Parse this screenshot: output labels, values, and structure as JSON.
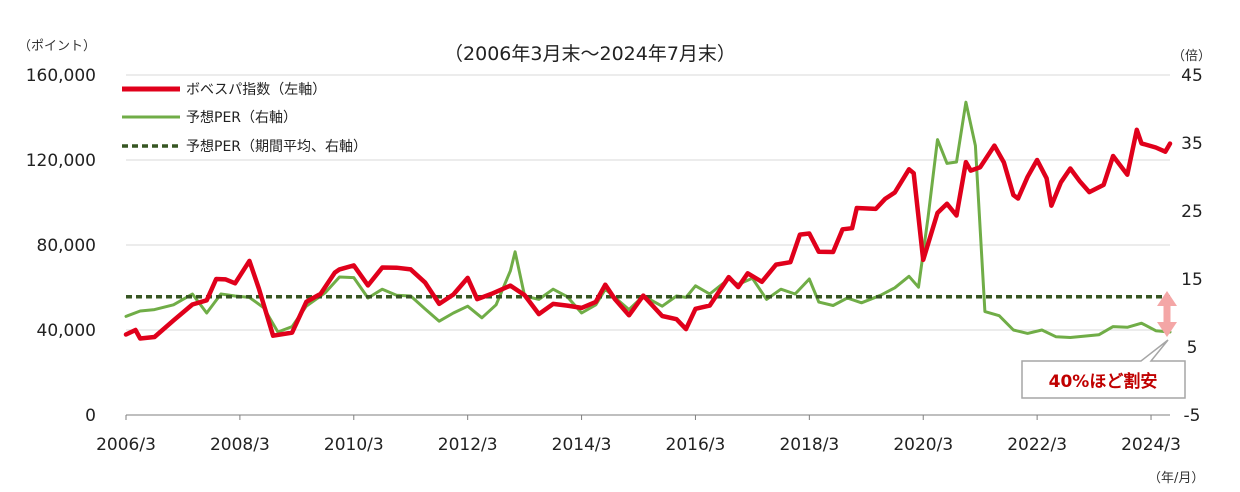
{
  "chart_data": {
    "type": "line",
    "title": "（2006年3月末～2024年7月末）",
    "y_left_unit": "（ポイント）",
    "y_right_unit": "（倍）",
    "x_unit": "（年/月）",
    "y_left_ticks": [
      "0",
      "40,000",
      "80,000",
      "120,000",
      "160,000"
    ],
    "y_left_lim": [
      0,
      160000
    ],
    "y_right_ticks": [
      "-5",
      "5",
      "15",
      "25",
      "35",
      "45"
    ],
    "y_right_lim": [
      -5,
      45
    ],
    "x_tick_labels": [
      "2006/3",
      "2008/3",
      "2010/3",
      "2012/3",
      "2014/3",
      "2016/3",
      "2018/3",
      "2020/3",
      "2022/3",
      "2024/3"
    ],
    "x_lim": [
      "2006-03",
      "2024-07"
    ],
    "legend": [
      "ボベスパ指数（左軸）",
      "予想PER（右軸）",
      "予想PER（期間平均、右軸）"
    ],
    "annotation": "40%ほど割安",
    "grid": "horizontal",
    "series": [
      {
        "name": "ボベスパ指数（左軸）",
        "axis": "left",
        "color": "#e0001b",
        "points": [
          [
            "2006-03",
            37900
          ],
          [
            "2006-05",
            40000
          ],
          [
            "2006-06",
            36000
          ],
          [
            "2006-09",
            36700
          ],
          [
            "2007-01",
            44500
          ],
          [
            "2007-05",
            52000
          ],
          [
            "2007-08",
            54000
          ],
          [
            "2007-10",
            64000
          ],
          [
            "2007-12",
            63800
          ],
          [
            "2008-02",
            62000
          ],
          [
            "2008-05",
            72500
          ],
          [
            "2008-07",
            59500
          ],
          [
            "2008-10",
            37300
          ],
          [
            "2009-02",
            38800
          ],
          [
            "2009-05",
            53200
          ],
          [
            "2009-08",
            57000
          ],
          [
            "2009-11",
            67000
          ],
          [
            "2009-12",
            68500
          ],
          [
            "2010-03",
            70400
          ],
          [
            "2010-06",
            61000
          ],
          [
            "2010-09",
            69400
          ],
          [
            "2010-12",
            69300
          ],
          [
            "2011-03",
            68500
          ],
          [
            "2011-06",
            62400
          ],
          [
            "2011-09",
            52300
          ],
          [
            "2011-12",
            56700
          ],
          [
            "2012-03",
            64500
          ],
          [
            "2012-05",
            54500
          ],
          [
            "2012-08",
            57000
          ],
          [
            "2012-12",
            60900
          ],
          [
            "2013-03",
            56400
          ],
          [
            "2013-06",
            47500
          ],
          [
            "2013-09",
            52300
          ],
          [
            "2013-12",
            51500
          ],
          [
            "2014-03",
            50400
          ],
          [
            "2014-06",
            53200
          ],
          [
            "2014-08",
            61300
          ],
          [
            "2014-10",
            54600
          ],
          [
            "2015-01",
            46900
          ],
          [
            "2015-04",
            56200
          ],
          [
            "2015-08",
            46600
          ],
          [
            "2015-11",
            45100
          ],
          [
            "2016-01",
            40400
          ],
          [
            "2016-03",
            50000
          ],
          [
            "2016-06",
            51500
          ],
          [
            "2016-10",
            64900
          ],
          [
            "2016-12",
            60200
          ],
          [
            "2017-02",
            66700
          ],
          [
            "2017-05",
            62700
          ],
          [
            "2017-08",
            70800
          ],
          [
            "2017-11",
            71900
          ],
          [
            "2018-01",
            84900
          ],
          [
            "2018-03",
            85400
          ],
          [
            "2018-05",
            76800
          ],
          [
            "2018-08",
            76700
          ],
          [
            "2018-10",
            87400
          ],
          [
            "2018-12",
            87900
          ],
          [
            "2019-01",
            97400
          ],
          [
            "2019-05",
            97000
          ],
          [
            "2019-07",
            101800
          ],
          [
            "2019-09",
            104700
          ],
          [
            "2019-12",
            115600
          ],
          [
            "2020-01",
            113800
          ],
          [
            "2020-03",
            73000
          ],
          [
            "2020-06",
            95100
          ],
          [
            "2020-08",
            99400
          ],
          [
            "2020-10",
            93900
          ],
          [
            "2020-12",
            119000
          ],
          [
            "2021-01",
            115000
          ],
          [
            "2021-03",
            116600
          ],
          [
            "2021-06",
            126800
          ],
          [
            "2021-08",
            118800
          ],
          [
            "2021-10",
            103500
          ],
          [
            "2021-11",
            101900
          ],
          [
            "2022-01",
            112100
          ],
          [
            "2022-03",
            119999
          ],
          [
            "2022-05",
            111400
          ],
          [
            "2022-06",
            98500
          ],
          [
            "2022-08",
            109500
          ],
          [
            "2022-10",
            116000
          ],
          [
            "2022-12",
            110000
          ],
          [
            "2023-02",
            104900
          ],
          [
            "2023-05",
            108300
          ],
          [
            "2023-07",
            121900
          ],
          [
            "2023-10",
            113100
          ],
          [
            "2023-12",
            134200
          ],
          [
            "2024-01",
            127800
          ],
          [
            "2024-04",
            125900
          ],
          [
            "2024-06",
            123900
          ],
          [
            "2024-07",
            127700
          ]
        ]
      },
      {
        "name": "予想PER（右軸）",
        "axis": "right",
        "color": "#70ad47",
        "points": [
          [
            "2006-03",
            9.5
          ],
          [
            "2006-06",
            10.3
          ],
          [
            "2006-09",
            10.5
          ],
          [
            "2007-01",
            11.2
          ],
          [
            "2007-05",
            12.8
          ],
          [
            "2007-08",
            10.0
          ],
          [
            "2007-11",
            12.8
          ],
          [
            "2008-02",
            12.5
          ],
          [
            "2008-05",
            12.3
          ],
          [
            "2008-08",
            10.8
          ],
          [
            "2008-11",
            7.2
          ],
          [
            "2009-02",
            8.0
          ],
          [
            "2009-05",
            11.0
          ],
          [
            "2009-09",
            13.0
          ],
          [
            "2009-12",
            15.3
          ],
          [
            "2010-03",
            15.2
          ],
          [
            "2010-06",
            12.2
          ],
          [
            "2010-09",
            13.5
          ],
          [
            "2010-12",
            12.6
          ],
          [
            "2011-03",
            12.5
          ],
          [
            "2011-06",
            10.6
          ],
          [
            "2011-09",
            8.8
          ],
          [
            "2011-12",
            10.0
          ],
          [
            "2012-03",
            11.0
          ],
          [
            "2012-06",
            9.3
          ],
          [
            "2012-09",
            11.2
          ],
          [
            "2012-12",
            16.2
          ],
          [
            "2013-01",
            19.0
          ],
          [
            "2013-03",
            12.5
          ],
          [
            "2013-06",
            12.0
          ],
          [
            "2013-09",
            13.5
          ],
          [
            "2013-12",
            12.4
          ],
          [
            "2014-03",
            10.0
          ],
          [
            "2014-06",
            11.2
          ],
          [
            "2014-08",
            13.5
          ],
          [
            "2014-10",
            12.3
          ],
          [
            "2015-01",
            10.5
          ],
          [
            "2015-04",
            12.5
          ],
          [
            "2015-08",
            11.0
          ],
          [
            "2015-11",
            12.5
          ],
          [
            "2016-01",
            12.3
          ],
          [
            "2016-03",
            14.0
          ],
          [
            "2016-06",
            12.8
          ],
          [
            "2016-10",
            15.0
          ],
          [
            "2016-12",
            14.2
          ],
          [
            "2017-03",
            15.1
          ],
          [
            "2017-06",
            12.0
          ],
          [
            "2017-09",
            13.5
          ],
          [
            "2017-12",
            12.8
          ],
          [
            "2018-03",
            15.0
          ],
          [
            "2018-05",
            11.6
          ],
          [
            "2018-08",
            11.1
          ],
          [
            "2018-11",
            12.2
          ],
          [
            "2019-02",
            11.5
          ],
          [
            "2019-06",
            12.6
          ],
          [
            "2019-09",
            13.7
          ],
          [
            "2019-12",
            15.4
          ],
          [
            "2020-02",
            13.8
          ],
          [
            "2020-04",
            24.0
          ],
          [
            "2020-06",
            35.5
          ],
          [
            "2020-08",
            32.0
          ],
          [
            "2020-10",
            32.2
          ],
          [
            "2020-12",
            41.0
          ],
          [
            "2021-02",
            34.6
          ],
          [
            "2021-04",
            10.2
          ],
          [
            "2021-07",
            9.6
          ],
          [
            "2021-10",
            7.5
          ],
          [
            "2022-01",
            7.0
          ],
          [
            "2022-04",
            7.5
          ],
          [
            "2022-07",
            6.5
          ],
          [
            "2022-10",
            6.4
          ],
          [
            "2023-01",
            6.6
          ],
          [
            "2023-04",
            6.8
          ],
          [
            "2023-07",
            8.0
          ],
          [
            "2023-10",
            7.9
          ],
          [
            "2024-01",
            8.5
          ],
          [
            "2024-04",
            7.4
          ],
          [
            "2024-07",
            7.2
          ]
        ]
      },
      {
        "name": "予想PER（期間平均、右軸）",
        "axis": "right",
        "color": "#375623",
        "style": "dashed",
        "points": [
          [
            "2006-03",
            12.4
          ],
          [
            "2024-07",
            12.4
          ]
        ]
      }
    ]
  },
  "colors": {
    "bovespa": "#e0001b",
    "per": "#70ad47",
    "per_avg": "#375623",
    "gridline": "#d9d9d9",
    "arrow": "#f4a6a6",
    "callout_border": "#a6a6a6",
    "callout_text": "#c00000"
  }
}
